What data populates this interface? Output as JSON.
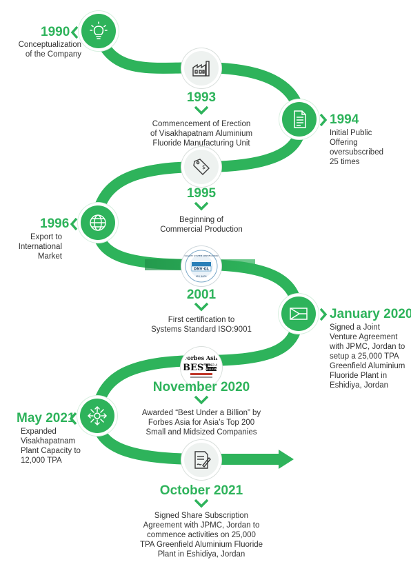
{
  "colors": {
    "accent": "#2eb35b",
    "path": "#2eb35b",
    "text": "#333333"
  },
  "milestones": [
    {
      "year": "1990",
      "text": "Conceptualization\nof the Company",
      "icon": "lightbulb-icon"
    },
    {
      "year": "1993",
      "text": "Commencement of Erection\nof Visakhapatnam Aluminium\nFluoride Manufacturing Unit",
      "icon": "factory-icon"
    },
    {
      "year": "1994",
      "text": "Initial Public\nOffering\noversubscribed\n25 times",
      "icon": "document-icon"
    },
    {
      "year": "1995",
      "text": "Beginning of\nCommercial Production",
      "icon": "price-tag-icon"
    },
    {
      "year": "1996",
      "text": "Export to\nInternational\nMarket",
      "icon": "globe-icon"
    },
    {
      "year": "2001",
      "text": "First certification to\nSystems Standard ISO:9001",
      "icon": "dnv-gl-badge",
      "badge": {
        "ring": "QUALITY SYSTEM CERTIFICATION",
        "name": "DNV·GL",
        "foot": "ISO 9001"
      }
    },
    {
      "year": "January 2020",
      "text": "Signed a Joint\nVenture Agreement\nwith JPMC, Jordan to\nsetup a 25,000 TPA\nGreenfield Aluminium\nFluoride Plant in\nEshidiya, Jordan",
      "icon": "jordan-flag-icon"
    },
    {
      "year": "November 2020",
      "text": "Awarded “Best Under a Billion” by\nForbes Asia for Asia’s Top 200\nSmall and Midsized Companies",
      "icon": "forbes-badge",
      "badge": {
        "line1": "Forbes Asia",
        "line2": "BEST",
        "line3": "UNDER A",
        "line4": "BILLION"
      }
    },
    {
      "year": "May 2021",
      "text": "Expanded\nVisakhapatnam\nPlant Capacity to\n12,000 TPA",
      "icon": "expand-arrows-icon"
    },
    {
      "year": "October 2021",
      "text": "Signed Share Subscription\nAgreement with JPMC, Jordan to\ncommence activities on 25,000\nTPA Greenfield Aluminium Fluoride\nPlant in Eshidiya, Jordan",
      "icon": "contract-signing-icon"
    }
  ]
}
